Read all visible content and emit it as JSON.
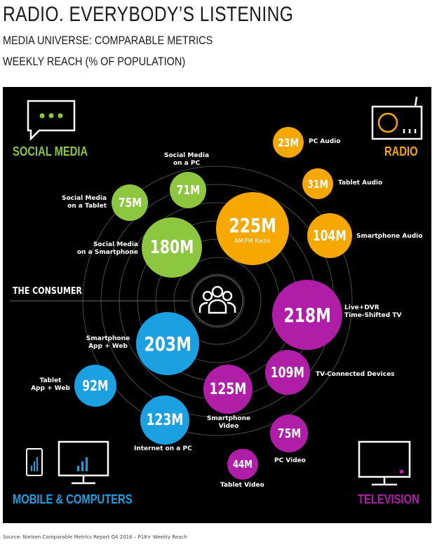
{
  "header": {
    "title": "RADIO. EVERYBODY’S LISTENING",
    "subtitle1": "MEDIA UNIVERSE: COMPARABLE METRICS",
    "subtitle2": "WEEKLY REACH (% OF POPULATION)"
  },
  "center_label": "THE CONSUMER",
  "categories": {
    "social": {
      "label": "SOCIAL MEDIA",
      "color": "#8dc63f"
    },
    "radio": {
      "label": "RADIO",
      "color": "#f7a800"
    },
    "mobile": {
      "label": "MOBILE & COMPUTERS",
      "color": "#1ba1e2"
    },
    "tv": {
      "label": "TELEVISION",
      "color": "#b01ea8"
    }
  },
  "bubbles": {
    "social_pc": {
      "value": "71M",
      "label1": "Social Media",
      "label2": "on a PC"
    },
    "social_tablet": {
      "value": "75M",
      "label1": "Social Media",
      "label2": "on a Tablet"
    },
    "social_smartphone": {
      "value": "180M",
      "label1": "Social Media",
      "label2": "on a Smartphone"
    },
    "radio_amfm": {
      "value": "225M",
      "sub": "AM/FM Radio"
    },
    "radio_pc": {
      "value": "23M",
      "label1": "PC Audio"
    },
    "radio_tablet": {
      "value": "31M",
      "label1": "Tablet Audio"
    },
    "radio_smartphone": {
      "value": "104M",
      "label1": "Smartphone Audio"
    },
    "tv_live": {
      "value": "218M",
      "label1": "Live+DVR",
      "label2": "Time-Shifted TV"
    },
    "tv_connected": {
      "value": "109M",
      "label1": "TV-Connected Devices"
    },
    "tv_smartphone": {
      "value": "125M",
      "label1": "Smartphone",
      "label2": "Video"
    },
    "tv_pc": {
      "value": "75M",
      "label1": "PC Video"
    },
    "tv_tablet": {
      "value": "44M",
      "label1": "Tablet Video"
    },
    "mobile_smartphone": {
      "value": "203M",
      "label1": "Smartphone",
      "label2": "App + Web"
    },
    "mobile_tablet": {
      "value": "92M",
      "label1": "Tablet",
      "label2": "App + Web"
    },
    "mobile_pc": {
      "value": "123M",
      "label1": "Internet on a PC"
    }
  },
  "source": "Source: Nielsen Comparable Metrics Report Q4 2016 – P18+ Weekly Reach"
}
